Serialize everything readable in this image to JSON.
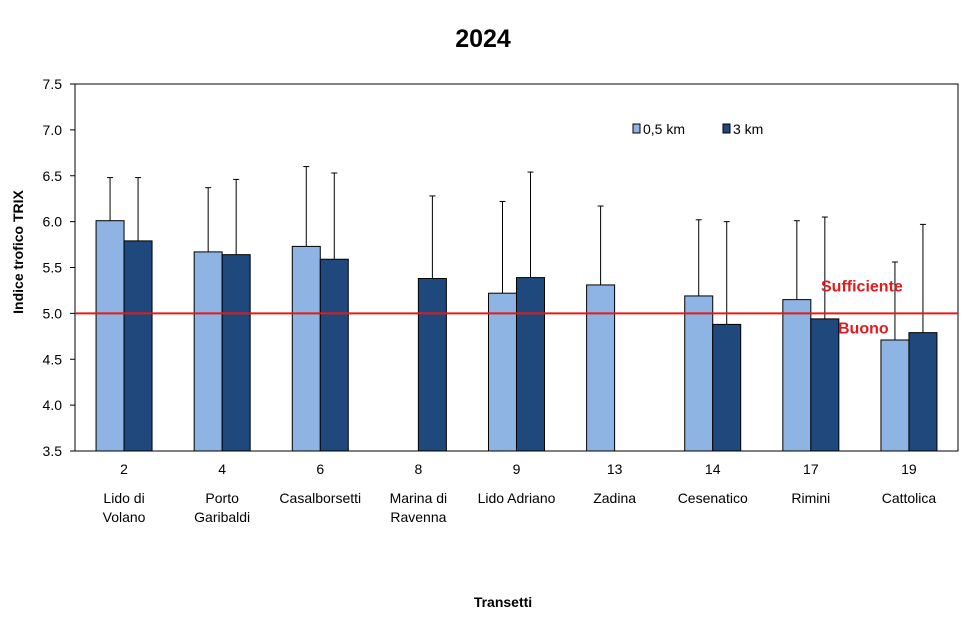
{
  "chart_data": {
    "type": "bar",
    "title": "2024",
    "xlabel": "Transetti",
    "ylabel": "Indice trofico TRIX",
    "ylim": [
      3.5,
      7.5
    ],
    "yticks": [
      "3.5",
      "4.0",
      "4.5",
      "5.0",
      "5.5",
      "6.0",
      "6.5",
      "7.0",
      "7.5"
    ],
    "grid": false,
    "legend_position": "top-right",
    "categories": [
      {
        "code": "2",
        "name_lines": [
          "Lido di",
          "Volano"
        ]
      },
      {
        "code": "4",
        "name_lines": [
          "Porto",
          "Garibaldi"
        ]
      },
      {
        "code": "6",
        "name_lines": [
          "Casalborsetti"
        ]
      },
      {
        "code": "8",
        "name_lines": [
          "Marina di",
          "Ravenna"
        ]
      },
      {
        "code": "9",
        "name_lines": [
          "Lido Adriano"
        ]
      },
      {
        "code": "13",
        "name_lines": [
          "Zadina"
        ]
      },
      {
        "code": "14",
        "name_lines": [
          "Cesenatico"
        ]
      },
      {
        "code": "17",
        "name_lines": [
          "Rimini"
        ]
      },
      {
        "code": "19",
        "name_lines": [
          "Cattolica"
        ]
      }
    ],
    "series": [
      {
        "name": "0,5 km",
        "color": "#8EB4E3",
        "values": [
          6.01,
          5.67,
          5.73,
          null,
          5.22,
          5.31,
          5.19,
          5.15,
          4.71
        ],
        "error_upper": [
          6.48,
          6.37,
          6.6,
          null,
          6.22,
          6.17,
          6.02,
          6.01,
          5.56
        ]
      },
      {
        "name": "3 km",
        "color": "#1F497D",
        "values": [
          5.79,
          5.64,
          5.59,
          5.38,
          5.39,
          null,
          4.88,
          4.94,
          4.79
        ],
        "error_upper": [
          6.48,
          6.46,
          6.53,
          6.28,
          6.54,
          null,
          6.0,
          6.05,
          5.97
        ]
      }
    ],
    "threshold": {
      "value": 5.0,
      "color": "#E31A1C",
      "label_above": "Sufficiente",
      "label_below": "Buono"
    }
  }
}
